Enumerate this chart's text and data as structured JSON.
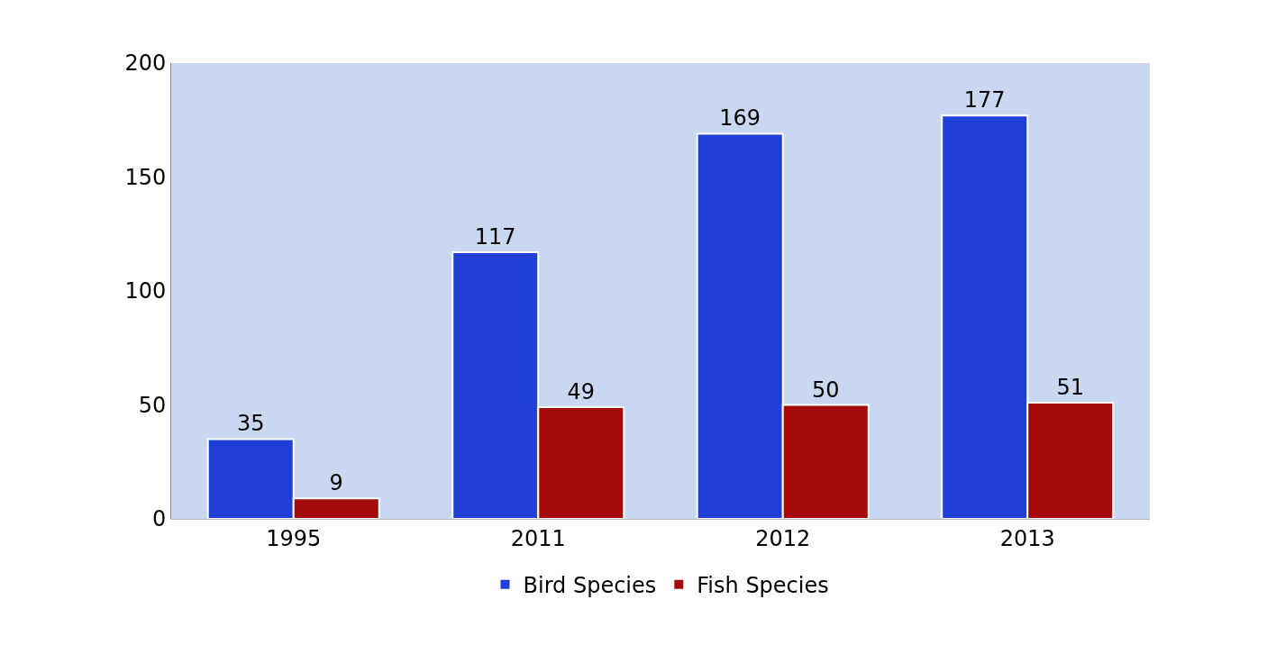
{
  "chart_data": {
    "type": "bar",
    "categories": [
      "1995",
      "2011",
      "2012",
      "2013"
    ],
    "series": [
      {
        "name": "Bird Species",
        "color": "#1f3fd6",
        "values": [
          35,
          117,
          169,
          177
        ]
      },
      {
        "name": "Fish Species",
        "color": "#a50a0a",
        "values": [
          9,
          49,
          50,
          51
        ]
      }
    ],
    "ylim": [
      0,
      200
    ],
    "yticks": [
      0,
      50,
      100,
      150,
      200
    ],
    "grid": false,
    "data_labels": true,
    "legend": "bottom"
  }
}
